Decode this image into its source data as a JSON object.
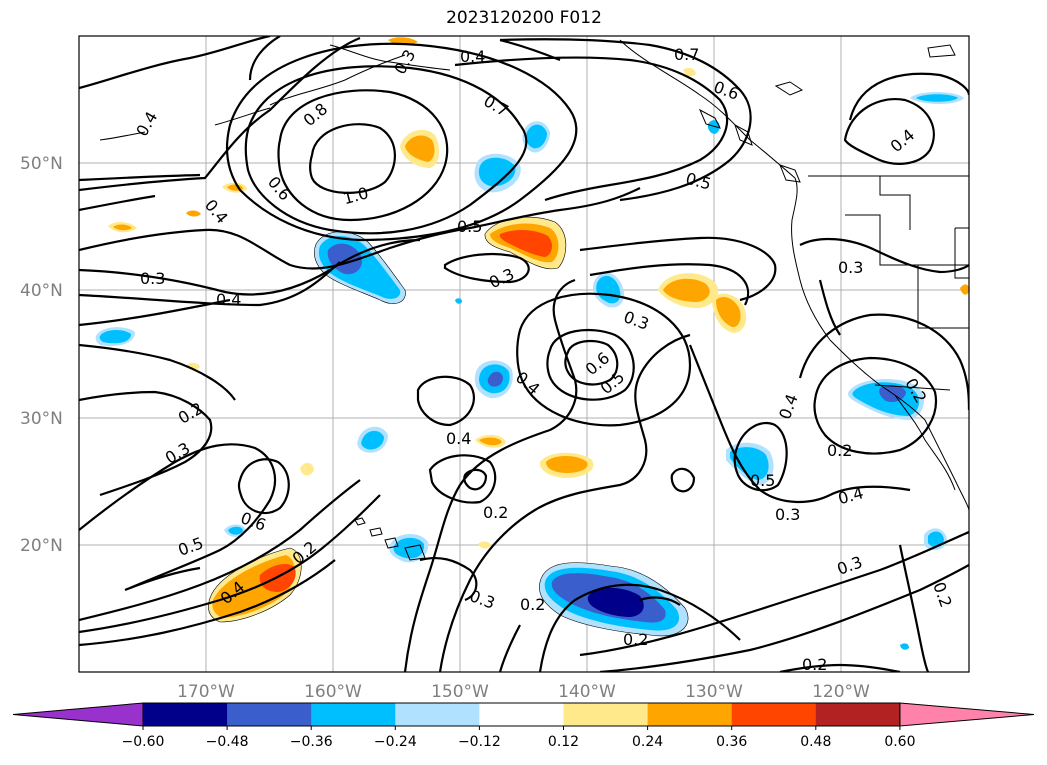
{
  "title": "2023120200 F012",
  "lat_labels": [
    "50°N",
    "40°N",
    "30°N",
    "20°N"
  ],
  "lon_labels": [
    "170°W",
    "160°W",
    "150°W",
    "140°W",
    "130°W",
    "120°W"
  ],
  "colorbar": {
    "ticks": [
      "−0.60",
      "−0.48",
      "−0.36",
      "−0.24",
      "−0.12",
      "0.12",
      "0.24",
      "0.36",
      "0.48",
      "0.60"
    ],
    "colors": [
      "#9932cc",
      "#00008b",
      "#3a5fcd",
      "#00bfff",
      "#b0e2ff",
      "#ffffff",
      "#ffe98a",
      "#ffa500",
      "#ff4500",
      "#b22222",
      "#ff82ab"
    ]
  },
  "contour_labels": [
    {
      "text": "0.4",
      "name": "label-0-4-north"
    },
    {
      "text": "0.8",
      "name": "label-0-8"
    },
    {
      "text": "0.7",
      "name": "label-0-7-center"
    },
    {
      "text": "0.7",
      "name": "label-0-7-coast"
    },
    {
      "text": "0.6",
      "name": "label-0-6-coast"
    },
    {
      "text": "0.5",
      "name": "label-0-5-coast"
    },
    {
      "text": "0.4",
      "name": "label-0-4-west-top"
    },
    {
      "text": "1.0",
      "name": "label-1-0"
    },
    {
      "text": "0.6",
      "name": "label-0-6-west"
    },
    {
      "text": "0.4",
      "name": "label-0-4-west"
    },
    {
      "text": "0.5",
      "name": "label-0-5-center"
    },
    {
      "text": "0.3",
      "name": "label-0-3-west"
    },
    {
      "text": "0.4",
      "name": "label-0-4-west2"
    },
    {
      "text": "0.3",
      "name": "label-0-3-center"
    },
    {
      "text": "0.3",
      "name": "label-0-3-east"
    },
    {
      "text": "0.3",
      "name": "label-0-3-far-east"
    },
    {
      "text": "0.4",
      "name": "label-0-4-nw"
    },
    {
      "text": "0.6",
      "name": "label-0-6-center"
    },
    {
      "text": "0.5",
      "name": "label-0-5-center2"
    },
    {
      "text": "0.4",
      "name": "label-0-4-center"
    },
    {
      "text": "0.2",
      "name": "label-0-2-west"
    },
    {
      "text": "0.3",
      "name": "label-0-3-sw"
    },
    {
      "text": "0.4",
      "name": "label-0-4-mid"
    },
    {
      "text": "0.4",
      "name": "label-0-4-east"
    },
    {
      "text": "0.2",
      "name": "label-0-2-east"
    },
    {
      "text": "0.5",
      "name": "label-0-5-east"
    },
    {
      "text": "0.2",
      "name": "label-0-2-baja"
    },
    {
      "text": "0.6",
      "name": "label-0-6-sw"
    },
    {
      "text": "0.5",
      "name": "label-0-5-sw"
    },
    {
      "text": "0.2",
      "name": "label-0-2-hawaii"
    },
    {
      "text": "0.2",
      "name": "label-0-2-south-center"
    },
    {
      "text": "0.3",
      "name": "label-0-3-se"
    },
    {
      "text": "0.4",
      "name": "label-0-4-se"
    },
    {
      "text": "0.4",
      "name": "label-0-4-sw2"
    },
    {
      "text": "0.3",
      "name": "label-0-3-south"
    },
    {
      "text": "0.2",
      "name": "label-0-2-south"
    },
    {
      "text": "0.2",
      "name": "label-0-2-south2"
    },
    {
      "text": "0.3",
      "name": "label-0-3-sse"
    },
    {
      "text": "0.2",
      "name": "label-0-2-far-se"
    },
    {
      "text": "0.2",
      "name": "label-0-2-bottom"
    },
    {
      "text": "0.3",
      "name": "label-0-3-ne"
    }
  ]
}
